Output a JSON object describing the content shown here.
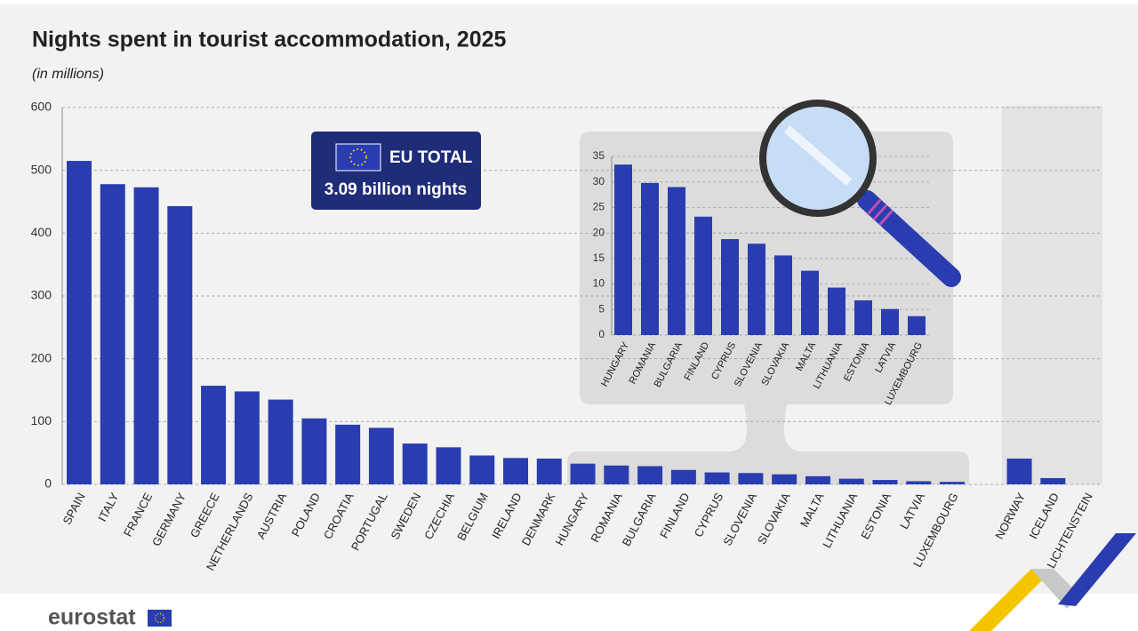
{
  "chart_data": [
    {
      "type": "bar",
      "title": "Nights spent in tourist accommodation, 2025",
      "subtitle": "(in millions)",
      "categories": [
        "SPAIN",
        "ITALY",
        "FRANCE",
        "GERMANY",
        "GREECE",
        "NETHERLANDS",
        "AUSTRIA",
        "POLAND",
        "CROATIA",
        "PORTUGAL",
        "SWEDEN",
        "CZECHIA",
        "BELGIUM",
        "IRELAND",
        "DENMARK",
        "HUNGARY",
        "ROMANIA",
        "BULGARIA",
        "FINLAND",
        "CYPRUS",
        "SLOVENIA",
        "SLOVAKIA",
        "MALTA",
        "LITHUANIA",
        "ESTONIA",
        "LATVIA",
        "LUXEMBOURG",
        null,
        "NORWAY",
        "ICELAND",
        "LICHTENSTEIN"
      ],
      "values": [
        515,
        478,
        473,
        443,
        157,
        148,
        135,
        105,
        95,
        90,
        65,
        59,
        46,
        42,
        41,
        33,
        30,
        29,
        23,
        19,
        18,
        16,
        13,
        9,
        7,
        5,
        4,
        null,
        41,
        10,
        0
      ],
      "color": "#2a3db0",
      "ylim": [
        0,
        600
      ],
      "yticks": [
        0,
        100,
        200,
        300,
        400,
        500,
        600
      ],
      "grid": true,
      "annotation": {
        "label": "EU TOTAL",
        "text": "3.09 billion nights"
      }
    },
    {
      "type": "bar",
      "categories": [
        "HUNGARY",
        "ROMANIA",
        "BULGARIA",
        "FINLAND",
        "CYPRUS",
        "SLOVENIA",
        "SLOVAKIA",
        "MALTA",
        "LITHUANIA",
        "ESTONIA",
        "LATVIA",
        "LUXEMBOURG"
      ],
      "values": [
        33.4,
        29.8,
        29,
        23.2,
        18.8,
        17.9,
        15.6,
        12.6,
        9.3,
        6.8,
        5.1,
        3.7
      ],
      "color": "#2a3db0",
      "ylim": [
        0,
        35
      ],
      "yticks": [
        0,
        5,
        10,
        15,
        20,
        25,
        30,
        35
      ],
      "grid": true
    }
  ],
  "footer": {
    "logo": "eurostat"
  }
}
